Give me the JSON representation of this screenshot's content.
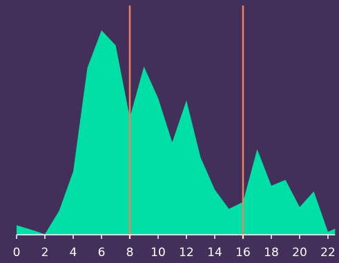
{
  "chart_data": {
    "type": "area",
    "x": [
      0,
      1,
      2,
      3,
      4,
      5,
      6,
      7,
      8,
      9,
      10,
      11,
      12,
      13,
      14,
      15,
      16,
      17,
      18,
      19,
      20,
      21,
      22,
      23
    ],
    "values": [
      4.6,
      2.5,
      0.3,
      11.4,
      30.3,
      80.0,
      98.0,
      90.8,
      56.2,
      80.6,
      65.5,
      44.3,
      64.4,
      37.1,
      21.7,
      12.4,
      15.7,
      41.0,
      23.5,
      26.3,
      13.3,
      20.8,
      1.4,
      4.5
    ],
    "xlim": [
      0,
      22.5
    ],
    "ylim": [
      0,
      100
    ],
    "x_ticks": [
      0,
      2,
      4,
      6,
      8,
      10,
      12,
      14,
      16,
      18,
      20,
      22
    ],
    "tick_labels": [
      "0",
      "2",
      "4",
      "6",
      "8",
      "10",
      "12",
      "14",
      "16",
      "18",
      "20",
      "22"
    ],
    "reference_lines_x": [
      8,
      16
    ],
    "grid": false,
    "colors": {
      "background": "#43305a",
      "area": "#00e0a6",
      "reference_line": "#f08060",
      "axis": "#ffffff",
      "text": "#ffffff"
    }
  }
}
